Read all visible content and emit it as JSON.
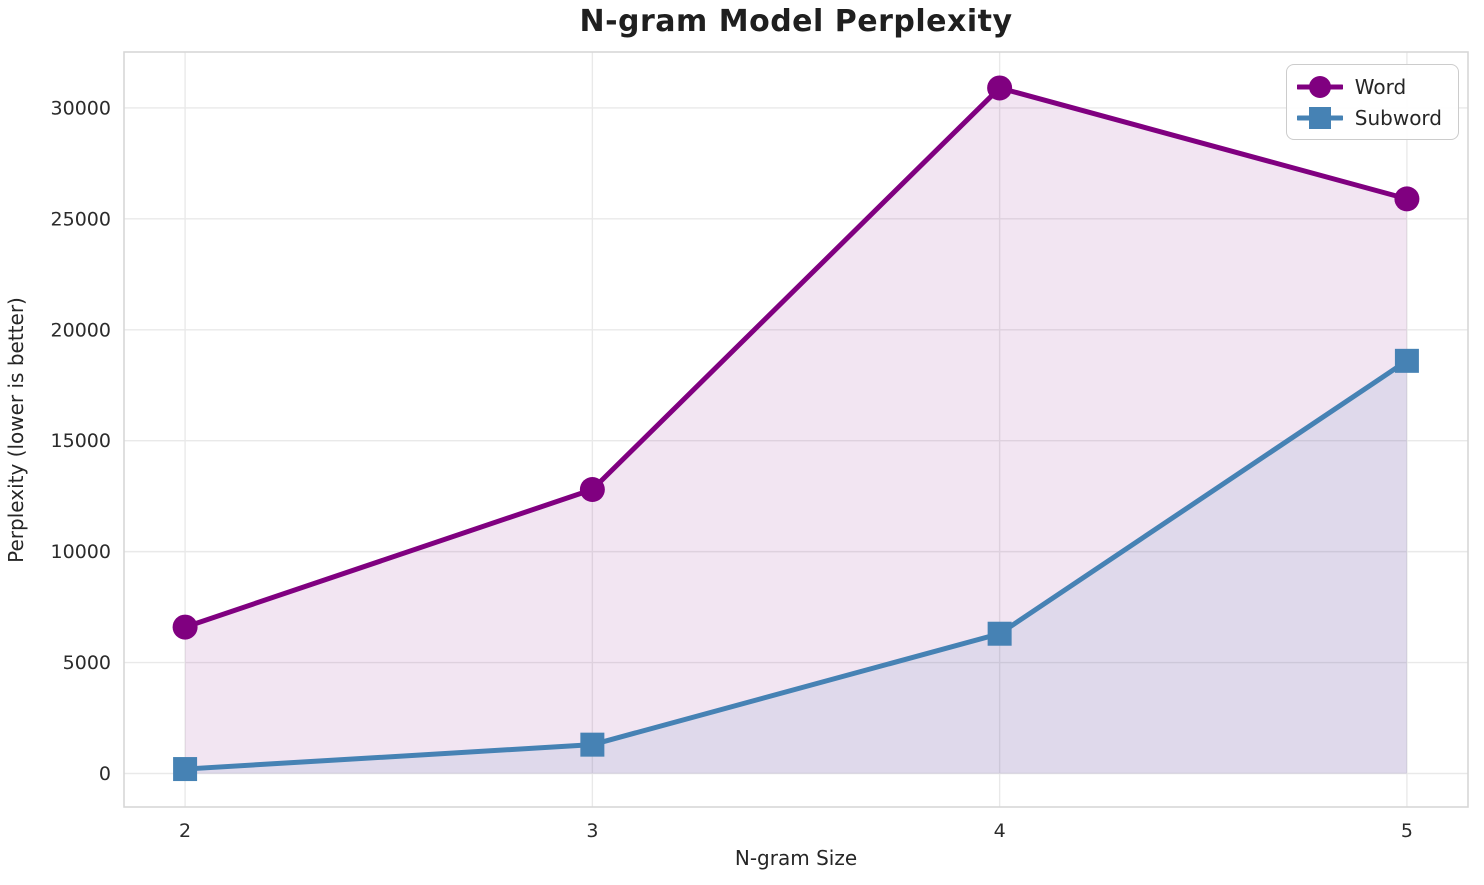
{
  "chart_data": {
    "type": "line",
    "title": "N-gram Model Perplexity",
    "xlabel": "N-gram Size",
    "ylabel": "Perplexity (lower is better)",
    "x": [
      2,
      3,
      4,
      5
    ],
    "x_tick_labels": [
      "2",
      "3",
      "4",
      "5"
    ],
    "y_ticks": [
      0,
      5000,
      10000,
      15000,
      20000,
      25000,
      30000
    ],
    "y_tick_labels": [
      "0",
      "5000",
      "10000",
      "15000",
      "20000",
      "25000",
      "30000"
    ],
    "xlim": [
      1.85,
      5.15
    ],
    "ylim": [
      -1510,
      32520
    ],
    "grid": true,
    "legend_position": "upper right",
    "area_fill_to_zero": true,
    "series": [
      {
        "name": "Word",
        "marker": "circle",
        "color": "#800080",
        "fill_alpha": 0.1,
        "values": [
          6600,
          12800,
          30900,
          25900
        ]
      },
      {
        "name": "Subword",
        "marker": "square",
        "color": "#4682B4",
        "fill_alpha": 0.11,
        "values": [
          200,
          1300,
          6300,
          18600
        ]
      }
    ]
  },
  "style_colors": {
    "gridline": "#e9e9e9",
    "plot_border": "#d7d7d7",
    "tick_text": "#2b2b2b",
    "title_text": "#1f1f1f"
  }
}
